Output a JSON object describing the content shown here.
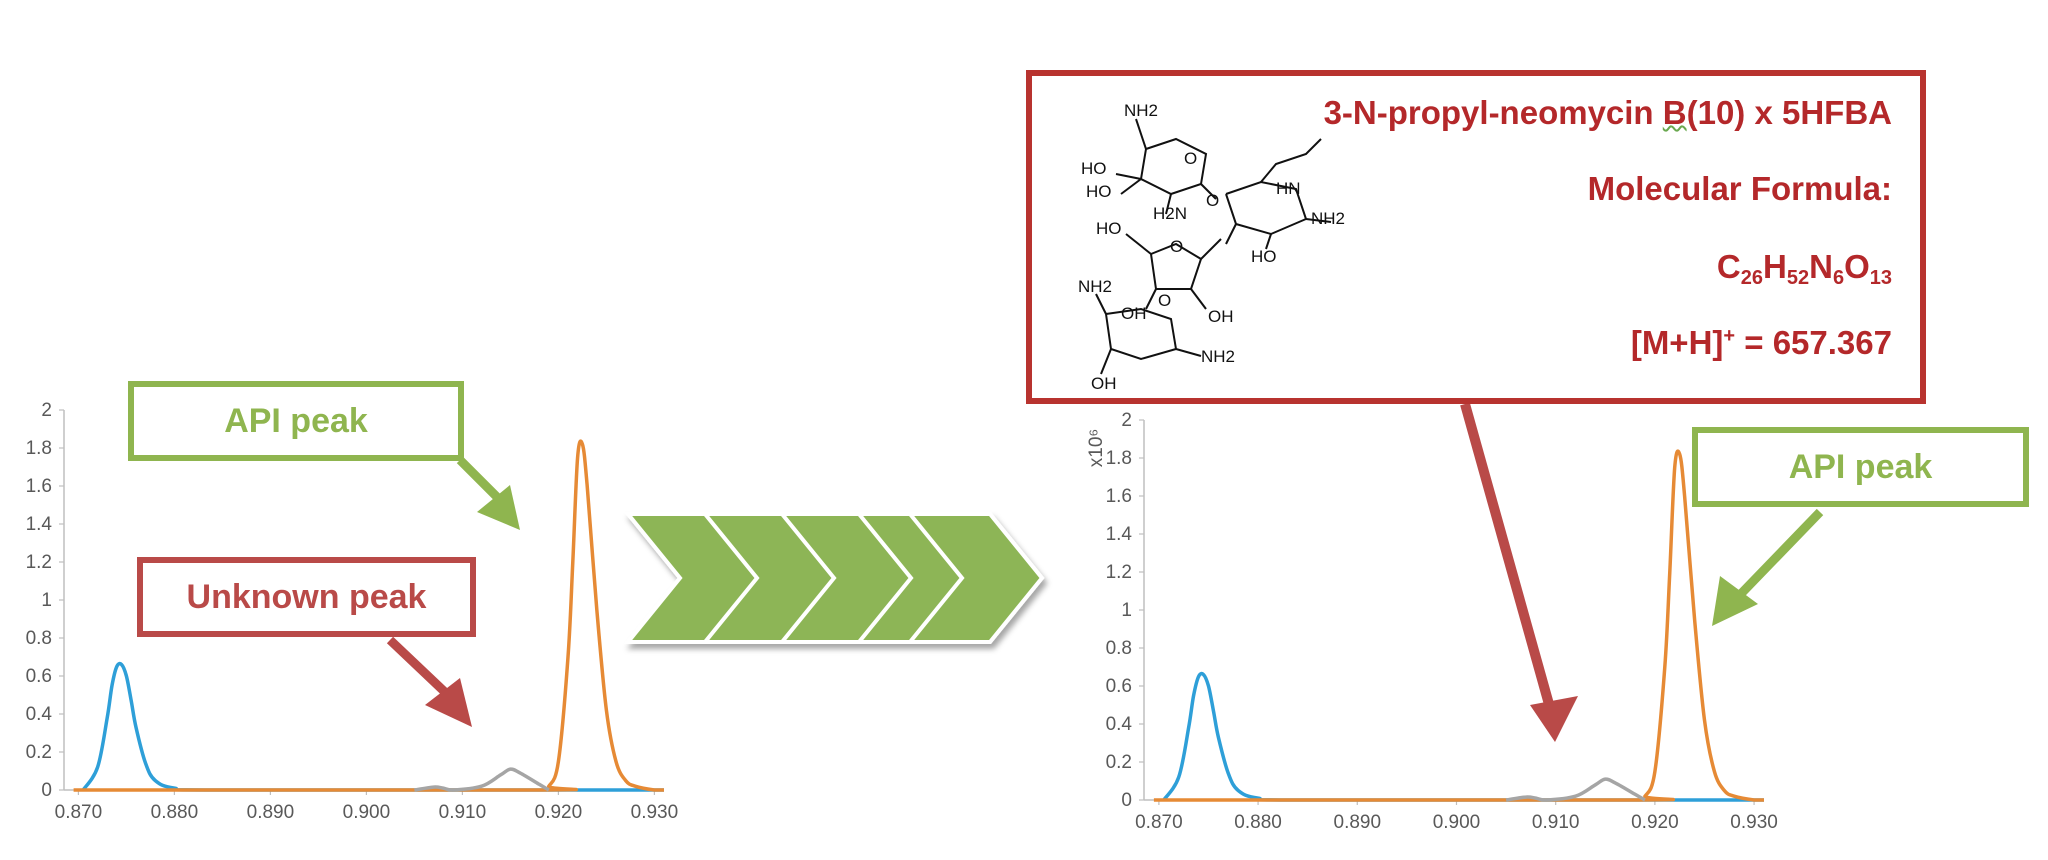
{
  "chart_data": [
    {
      "type": "line",
      "name": "left-chromatogram",
      "x_ticks": [
        "0.870",
        "0.880",
        "0.890",
        "0.900",
        "0.910",
        "0.920",
        "0.930"
      ],
      "y_ticks": [
        "0",
        "0.2",
        "0.4",
        "0.6",
        "0.8",
        "1",
        "1.2",
        "1.4",
        "1.6",
        "1.8",
        "2"
      ],
      "xlim": [
        0.8685,
        0.931
      ],
      "ylim": [
        0,
        2
      ],
      "ylabel": "",
      "series": [
        {
          "color": "#2e9fd8",
          "x": [
            0.8705,
            0.872,
            0.873,
            0.8735,
            0.874,
            0.8745,
            0.875,
            0.8755,
            0.876,
            0.877,
            0.878,
            0.88,
            0.885,
            0.931
          ],
          "y": [
            0,
            0.12,
            0.38,
            0.55,
            0.65,
            0.66,
            0.6,
            0.47,
            0.33,
            0.14,
            0.05,
            0.01,
            0,
            0
          ]
        },
        {
          "color": "#e68a35",
          "x": [
            0.8695,
            0.918,
            0.919,
            0.92,
            0.921,
            0.9215,
            0.922,
            0.9225,
            0.923,
            0.924,
            0.925,
            0.926,
            0.927,
            0.928,
            0.93,
            0.931
          ],
          "y": [
            0,
            0,
            0.02,
            0.15,
            0.7,
            1.2,
            1.75,
            1.82,
            1.6,
            0.95,
            0.42,
            0.15,
            0.05,
            0.02,
            0,
            0
          ]
        },
        {
          "color": "#a5a5a5",
          "x": [
            0.905,
            0.907,
            0.908,
            0.909,
            0.912,
            0.914,
            0.915,
            0.916,
            0.918,
            0.919
          ],
          "y": [
            0,
            0.015,
            0.01,
            0,
            0.02,
            0.08,
            0.11,
            0.09,
            0.03,
            0
          ]
        }
      ]
    },
    {
      "type": "line",
      "name": "right-chromatogram",
      "x_ticks": [
        "0.870",
        "0.880",
        "0.890",
        "0.900",
        "0.910",
        "0.920",
        "0.930"
      ],
      "y_ticks": [
        "0",
        "0.2",
        "0.4",
        "0.6",
        "0.8",
        "1",
        "1.2",
        "1.4",
        "1.6",
        "1.8",
        "2"
      ],
      "xlim": [
        0.8685,
        0.931
      ],
      "ylim": [
        0,
        2
      ],
      "ylabel": "x10⁶",
      "series": [
        {
          "color": "#2e9fd8",
          "x": [
            0.8705,
            0.872,
            0.873,
            0.8735,
            0.874,
            0.8745,
            0.875,
            0.8755,
            0.876,
            0.877,
            0.878,
            0.88,
            0.885,
            0.931
          ],
          "y": [
            0,
            0.12,
            0.38,
            0.55,
            0.65,
            0.66,
            0.6,
            0.47,
            0.33,
            0.14,
            0.05,
            0.01,
            0,
            0
          ]
        },
        {
          "color": "#e68a35",
          "x": [
            0.8695,
            0.918,
            0.919,
            0.92,
            0.921,
            0.9215,
            0.922,
            0.9225,
            0.923,
            0.924,
            0.925,
            0.926,
            0.927,
            0.928,
            0.93,
            0.931
          ],
          "y": [
            0,
            0,
            0.02,
            0.15,
            0.7,
            1.2,
            1.75,
            1.82,
            1.6,
            0.95,
            0.42,
            0.15,
            0.05,
            0.02,
            0,
            0
          ]
        },
        {
          "color": "#a5a5a5",
          "x": [
            0.905,
            0.907,
            0.908,
            0.909,
            0.912,
            0.914,
            0.915,
            0.916,
            0.918,
            0.919
          ],
          "y": [
            0,
            0.015,
            0.01,
            0,
            0.02,
            0.08,
            0.11,
            0.09,
            0.03,
            0
          ]
        }
      ]
    }
  ],
  "callouts": {
    "left_api": "API peak",
    "unknown": "Unknown peak",
    "right_api": "API peak"
  },
  "infobox": {
    "title_prefix": "3-N-propyl-neomycin ",
    "title_b": "B",
    "title_suffix": "(10) x 5HFBA",
    "formula_label": "Molecular Formula:",
    "formula": {
      "c": "C",
      "c_n": "26",
      "h": "H",
      "h_n": "52",
      "n": "N",
      "n_n": "6",
      "o": "O",
      "o_n": "13"
    },
    "mh_label": "[M+H]",
    "mh_sup": "+",
    "mh_value": " = 657.367"
  },
  "molecule_labels": {
    "nh2_top": "NH2",
    "ho_1": "HO",
    "ho_2": "HO",
    "h2n": "H2N",
    "hn": "HN",
    "nh2_right": "NH2",
    "ho_3": "HO",
    "ho_4": "HO",
    "oh_1": "OH",
    "nh2_mid": "NH2",
    "oh_2": "OH",
    "nh2_bottom": "NH2",
    "oh_3": "OH",
    "o_1": "O",
    "o_2": "O",
    "o_3": "O",
    "o_4": "O"
  },
  "colors": {
    "blue_series": "#2e9fd8",
    "orange_series": "#e68a35",
    "gray_series": "#a5a5a5",
    "green_accent": "#8fb54f",
    "red_accent": "#b94a48"
  }
}
